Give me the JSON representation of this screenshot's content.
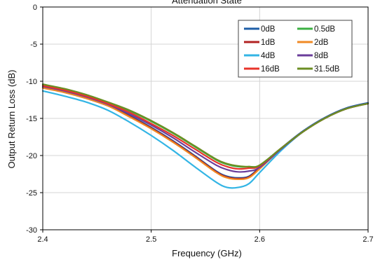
{
  "chart_data": {
    "type": "line",
    "title": "Attenuation State",
    "xlabel": "Frequency (GHz)",
    "ylabel": "Output Return Loss (dB)",
    "xlim": [
      2.4,
      2.7
    ],
    "ylim": [
      -30,
      0
    ],
    "xticks": [
      2.4,
      2.5,
      2.6,
      2.7
    ],
    "xtick_labels": [
      "2.4",
      "2.5",
      "2.6",
      "2.7"
    ],
    "yticks": [
      0,
      -5,
      -10,
      -15,
      -20,
      -25,
      -30
    ],
    "ytick_labels": [
      "0",
      "-5",
      "-10",
      "-15",
      "-20",
      "-25",
      "-30"
    ],
    "grid": true,
    "legend_position": "top-right",
    "x": [
      2.4,
      2.42,
      2.44,
      2.46,
      2.48,
      2.5,
      2.52,
      2.54,
      2.56,
      2.57,
      2.58,
      2.59,
      2.6,
      2.62,
      2.64,
      2.66,
      2.68,
      2.7
    ],
    "series": [
      {
        "name": "0dB",
        "color": "#1f5fa8",
        "values": [
          -10.8,
          -11.4,
          -12.2,
          -13.2,
          -14.6,
          -16.2,
          -18.0,
          -20.0,
          -22.1,
          -22.8,
          -23.0,
          -22.8,
          -21.6,
          -19.0,
          -16.7,
          -14.9,
          -13.6,
          -12.9
        ]
      },
      {
        "name": "0.5dB",
        "color": "#3cb043",
        "values": [
          -10.5,
          -11.1,
          -11.9,
          -12.9,
          -14.0,
          -15.4,
          -17.0,
          -18.8,
          -20.6,
          -21.2,
          -21.5,
          -21.5,
          -21.3,
          -19.0,
          -16.8,
          -15.0,
          -13.7,
          -13.0
        ]
      },
      {
        "name": "1dB",
        "color": "#b22222",
        "values": [
          -10.9,
          -11.5,
          -12.3,
          -13.3,
          -14.7,
          -16.3,
          -18.1,
          -20.1,
          -22.2,
          -22.9,
          -23.1,
          -22.9,
          -21.7,
          -19.1,
          -16.8,
          -15.0,
          -13.7,
          -13.0
        ]
      },
      {
        "name": "2dB",
        "color": "#f08a24",
        "values": [
          -10.9,
          -11.5,
          -12.3,
          -13.3,
          -14.8,
          -16.4,
          -18.2,
          -20.2,
          -22.3,
          -23.0,
          -23.2,
          -23.0,
          -21.8,
          -19.1,
          -16.8,
          -15.0,
          -13.7,
          -13.0
        ]
      },
      {
        "name": "4dB",
        "color": "#33b5e5",
        "values": [
          -11.3,
          -12.0,
          -12.8,
          -13.9,
          -15.5,
          -17.3,
          -19.3,
          -21.5,
          -23.6,
          -24.3,
          -24.3,
          -23.8,
          -22.3,
          -19.3,
          -16.8,
          -15.0,
          -13.7,
          -13.0
        ]
      },
      {
        "name": "8dB",
        "color": "#6a3d9a",
        "values": [
          -10.7,
          -11.3,
          -12.1,
          -13.1,
          -14.4,
          -15.9,
          -17.6,
          -19.5,
          -21.3,
          -21.9,
          -22.2,
          -22.1,
          -21.6,
          -19.1,
          -16.8,
          -15.0,
          -13.7,
          -13.0
        ]
      },
      {
        "name": "16dB",
        "color": "#e8342a",
        "values": [
          -10.6,
          -11.2,
          -12.0,
          -13.0,
          -14.2,
          -15.7,
          -17.3,
          -19.1,
          -20.9,
          -21.5,
          -21.8,
          -21.7,
          -21.4,
          -19.0,
          -16.8,
          -15.0,
          -13.7,
          -13.0
        ]
      },
      {
        "name": "31.5dB",
        "color": "#6b8e23",
        "values": [
          -10.4,
          -11.0,
          -11.8,
          -12.8,
          -13.9,
          -15.3,
          -16.9,
          -18.7,
          -20.5,
          -21.1,
          -21.4,
          -21.5,
          -21.3,
          -19.0,
          -16.8,
          -15.0,
          -13.7,
          -13.0
        ]
      }
    ]
  }
}
